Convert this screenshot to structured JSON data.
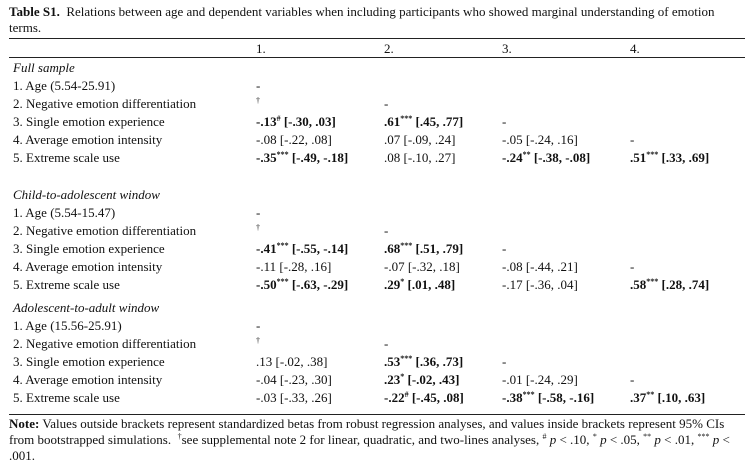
{
  "caption": {
    "label": "Table S1.",
    "text": "Relations between age and dependent variables when including participants who showed marginal understanding of emotion terms."
  },
  "columns": [
    "1.",
    "2.",
    "3.",
    "4."
  ],
  "sections": [
    {
      "title": "Full sample",
      "rows": [
        {
          "label": "1.  Age (5.54-25.91)",
          "cells": [
            {
              "val": "-"
            },
            null,
            null,
            null
          ]
        },
        {
          "label": "2.  Negative emotion differentiation",
          "cells": [
            {
              "val": "†"
            },
            {
              "val": "-"
            },
            null,
            null
          ]
        },
        {
          "label": "3.  Single emotion experience",
          "cells": [
            {
              "val": "-.13",
              "sup": "#",
              "ci": "[-.30, .03]",
              "bold": true
            },
            {
              "val": ".61",
              "sup": "***",
              "ci": "[.45, .77]",
              "bold": true
            },
            {
              "val": "-"
            },
            null
          ]
        },
        {
          "label": "4.  Average emotion intensity",
          "cells": [
            {
              "val": "-.08",
              "ci": "[-.22, .08]"
            },
            {
              "val": ".07",
              "ci": "[-.09, .24]"
            },
            {
              "val": "-.05",
              "ci": "[-.24, .16]"
            },
            {
              "val": "-"
            }
          ]
        },
        {
          "label": "5.  Extreme scale use",
          "cells": [
            {
              "val": "-.35",
              "sup": "***",
              "ci": "[-.49, -.18]",
              "bold": true
            },
            {
              "val": ".08",
              "ci": "[-.10, .27]"
            },
            {
              "val": "-.24",
              "sup": "**",
              "ci": "[-.38, -.08]",
              "bold": true
            },
            {
              "val": ".51",
              "sup": "***",
              "ci": "[.33, .69]",
              "bold": true
            }
          ]
        }
      ]
    },
    {
      "title": "Child-to-adolescent window",
      "rows": [
        {
          "label": "1.  Age (5.54-15.47)",
          "cells": [
            {
              "val": "-"
            },
            null,
            null,
            null
          ]
        },
        {
          "label": "2.  Negative emotion differentiation",
          "cells": [
            {
              "val": "†"
            },
            {
              "val": "-"
            },
            null,
            null
          ]
        },
        {
          "label": "3.  Single emotion experience",
          "cells": [
            {
              "val": "-.41",
              "sup": "***",
              "ci": "[-.55, -.14]",
              "bold": true
            },
            {
              "val": ".68",
              "sup": "***",
              "ci": "[.51, .79]",
              "bold": true
            },
            {
              "val": "-"
            },
            null
          ]
        },
        {
          "label": "4.  Average emotion intensity",
          "cells": [
            {
              "val": "-.11",
              "ci": "[-.28, .16]"
            },
            {
              "val": "-.07",
              "ci": "[-.32, .18]"
            },
            {
              "val": "-.08",
              "ci": "[-.44, .21]"
            },
            {
              "val": "-"
            }
          ]
        },
        {
          "label": "5.  Extreme scale use",
          "cells": [
            {
              "val": "-.50",
              "sup": "***",
              "ci": "[-.63, -.29]",
              "bold": true
            },
            {
              "val": ".29",
              "sup": "*",
              "ci": "[.01, .48]",
              "bold": true
            },
            {
              "val": "-.17",
              "ci": "[-.36, .04]"
            },
            {
              "val": ".58",
              "sup": "***",
              "ci": "[.28, .74]",
              "bold": true
            }
          ]
        }
      ]
    },
    {
      "title": "Adolescent-to-adult window",
      "rows": [
        {
          "label": "1.  Age (15.56-25.91)",
          "cells": [
            {
              "val": "-"
            },
            null,
            null,
            null
          ]
        },
        {
          "label": "2.  Negative emotion differentiation",
          "cells": [
            {
              "val": "†"
            },
            {
              "val": "-"
            },
            null,
            null
          ]
        },
        {
          "label": "3.  Single emotion experience",
          "cells": [
            {
              "val": ".13",
              "ci": "[-.02, .38]"
            },
            {
              "val": ".53",
              "sup": "***",
              "ci": "[.36, .73]",
              "bold": true
            },
            {
              "val": "-"
            },
            null
          ]
        },
        {
          "label": "4.  Average emotion intensity",
          "cells": [
            {
              "val": "-.04",
              "ci": "[-.23, .30]"
            },
            {
              "val": ".23",
              "sup": "*",
              "ci": "[-.02, .43]",
              "bold": true
            },
            {
              "val": "-.01",
              "ci": "[-.24, .29]"
            },
            {
              "val": "-"
            }
          ]
        },
        {
          "label": "5.  Extreme scale use",
          "cells": [
            {
              "val": "-.03",
              "ci": "[-.33, .26]"
            },
            {
              "val": "-.22",
              "sup": "#",
              "ci": "[-.45, .08]",
              "bold": true
            },
            {
              "val": "-.38",
              "sup": "***",
              "ci": "[-.58, -.16]",
              "bold": true
            },
            {
              "val": ".37",
              "sup": "**",
              "ci": "[.10, .63]",
              "bold": true
            }
          ]
        }
      ]
    }
  ],
  "note": {
    "label": "Note:",
    "text1": "Values outside brackets represent standardized betas from robust regression analyses, and values inside brackets represent 95% CIs from bootstrapped simulations.",
    "dagger": "†",
    "text2": "see supplemental note 2 for linear, quadratic, and two-lines analyses,",
    "sig": [
      {
        "sym": "#",
        "p": "p",
        "rest": " < .10,"
      },
      {
        "sym": "*",
        "p": "p",
        "rest": " < .05,"
      },
      {
        "sym": "**",
        "p": "p",
        "rest": " < .01,"
      },
      {
        "sym": "***",
        "p": "p",
        "rest": " < .001."
      }
    ]
  }
}
